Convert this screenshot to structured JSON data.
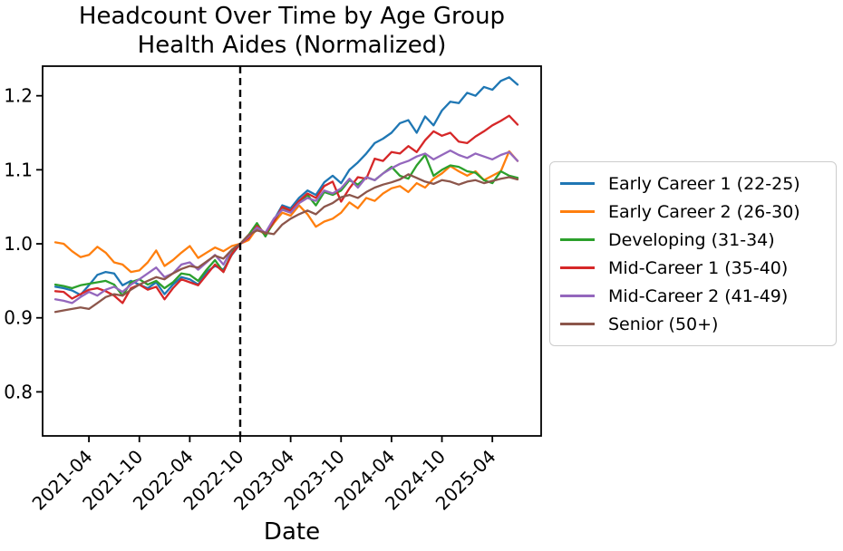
{
  "chart_data": {
    "type": "line",
    "title": "Headcount Over Time by Age Group\nHealth Aides (Normalized)",
    "title_line1": "Headcount Over Time by Age Group",
    "title_line2": "Health Aides (Normalized)",
    "xlabel": "Date",
    "ylabel": "",
    "grid": false,
    "legend_position": "right",
    "ylim": [
      0.7405,
      1.24
    ],
    "y_ticks": [
      0.8,
      0.9,
      1.0,
      1.1,
      1.2
    ],
    "x_months": [
      "2020-12",
      "2021-01",
      "2021-02",
      "2021-03",
      "2021-04",
      "2021-05",
      "2021-06",
      "2021-07",
      "2021-08",
      "2021-09",
      "2021-10",
      "2021-11",
      "2021-12",
      "2022-01",
      "2022-02",
      "2022-03",
      "2022-04",
      "2022-05",
      "2022-06",
      "2022-07",
      "2022-08",
      "2022-09",
      "2022-10",
      "2022-11",
      "2022-12",
      "2023-01",
      "2023-02",
      "2023-03",
      "2023-04",
      "2023-05",
      "2023-06",
      "2023-07",
      "2023-08",
      "2023-09",
      "2023-10",
      "2023-11",
      "2023-12",
      "2024-01",
      "2024-02",
      "2024-03",
      "2024-04",
      "2024-05",
      "2024-06",
      "2024-07",
      "2024-08",
      "2024-09",
      "2024-10",
      "2024-11",
      "2024-12",
      "2025-01",
      "2025-02",
      "2025-03",
      "2025-04",
      "2025-05",
      "2025-06",
      "2025-07"
    ],
    "x_tick_labels": [
      "2021-04",
      "2021-10",
      "2022-04",
      "2022-10",
      "2023-04",
      "2023-10",
      "2024-04",
      "2024-10",
      "2025-04"
    ],
    "vline": {
      "month": "2022-10",
      "style": "dashed",
      "color": "#000000"
    },
    "normalization_note": "all series equal 1.0 at 2022-10",
    "series": [
      {
        "name": "Early Career 1 (22-25)",
        "color": "#1f77b4",
        "values": [
          0.942,
          0.94,
          0.937,
          0.931,
          0.944,
          0.958,
          0.962,
          0.96,
          0.944,
          0.95,
          0.945,
          0.94,
          0.948,
          0.932,
          0.945,
          0.955,
          0.952,
          0.945,
          0.962,
          0.97,
          0.965,
          0.985,
          1.0,
          1.01,
          1.026,
          1.012,
          1.032,
          1.052,
          1.048,
          1.062,
          1.072,
          1.066,
          1.083,
          1.092,
          1.082,
          1.1,
          1.11,
          1.122,
          1.136,
          1.142,
          1.15,
          1.163,
          1.167,
          1.15,
          1.172,
          1.16,
          1.18,
          1.192,
          1.19,
          1.204,
          1.2,
          1.212,
          1.208,
          1.22,
          1.225,
          1.215
        ]
      },
      {
        "name": "Early Career 2 (26-30)",
        "color": "#ff7f0e",
        "values": [
          1.002,
          1.0,
          0.99,
          0.982,
          0.985,
          0.996,
          0.988,
          0.975,
          0.972,
          0.962,
          0.964,
          0.975,
          0.991,
          0.97,
          0.978,
          0.988,
          0.997,
          0.981,
          0.988,
          0.995,
          0.99,
          0.997,
          1.0,
          1.005,
          1.021,
          1.012,
          1.028,
          1.042,
          1.038,
          1.052,
          1.04,
          1.023,
          1.03,
          1.034,
          1.042,
          1.056,
          1.048,
          1.062,
          1.058,
          1.068,
          1.075,
          1.078,
          1.07,
          1.082,
          1.076,
          1.088,
          1.095,
          1.105,
          1.098,
          1.092,
          1.098,
          1.086,
          1.092,
          1.098,
          1.125,
          1.112
        ]
      },
      {
        "name": "Developing (31-34)",
        "color": "#2ca02c",
        "values": [
          0.945,
          0.943,
          0.94,
          0.944,
          0.946,
          0.948,
          0.95,
          0.945,
          0.93,
          0.948,
          0.952,
          0.945,
          0.95,
          0.94,
          0.948,
          0.96,
          0.958,
          0.95,
          0.965,
          0.978,
          0.962,
          0.988,
          1.0,
          1.012,
          1.028,
          1.01,
          1.03,
          1.048,
          1.044,
          1.056,
          1.066,
          1.052,
          1.07,
          1.066,
          1.072,
          1.086,
          1.08,
          1.09,
          1.086,
          1.095,
          1.104,
          1.092,
          1.088,
          1.106,
          1.12,
          1.092,
          1.1,
          1.106,
          1.104,
          1.098,
          1.096,
          1.086,
          1.082,
          1.098,
          1.092,
          1.089
        ]
      },
      {
        "name": "Mid-Career 1 (35-40)",
        "color": "#d62728",
        "values": [
          0.936,
          0.935,
          0.926,
          0.932,
          0.938,
          0.94,
          0.936,
          0.93,
          0.92,
          0.94,
          0.945,
          0.938,
          0.942,
          0.925,
          0.94,
          0.952,
          0.948,
          0.944,
          0.958,
          0.972,
          0.962,
          0.986,
          1.0,
          1.008,
          1.024,
          1.014,
          1.03,
          1.05,
          1.045,
          1.058,
          1.068,
          1.062,
          1.078,
          1.084,
          1.057,
          1.075,
          1.09,
          1.088,
          1.115,
          1.112,
          1.124,
          1.122,
          1.132,
          1.124,
          1.14,
          1.152,
          1.146,
          1.15,
          1.138,
          1.136,
          1.145,
          1.152,
          1.16,
          1.166,
          1.173,
          1.161
        ]
      },
      {
        "name": "Mid-Career 2 (41-49)",
        "color": "#9467bd",
        "values": [
          0.925,
          0.923,
          0.92,
          0.928,
          0.935,
          0.93,
          0.938,
          0.942,
          0.935,
          0.945,
          0.952,
          0.96,
          0.968,
          0.955,
          0.96,
          0.972,
          0.975,
          0.965,
          0.975,
          0.985,
          0.972,
          0.992,
          1.0,
          1.01,
          1.022,
          1.015,
          1.034,
          1.046,
          1.042,
          1.055,
          1.062,
          1.058,
          1.072,
          1.068,
          1.075,
          1.088,
          1.076,
          1.09,
          1.086,
          1.095,
          1.102,
          1.108,
          1.112,
          1.118,
          1.122,
          1.114,
          1.12,
          1.126,
          1.12,
          1.116,
          1.122,
          1.118,
          1.114,
          1.12,
          1.124,
          1.112
        ]
      },
      {
        "name": "Senior (50+)",
        "color": "#8c564b",
        "values": [
          0.908,
          0.91,
          0.912,
          0.914,
          0.912,
          0.92,
          0.928,
          0.932,
          0.93,
          0.938,
          0.945,
          0.95,
          0.955,
          0.952,
          0.96,
          0.966,
          0.97,
          0.968,
          0.976,
          0.984,
          0.98,
          0.992,
          1.0,
          1.012,
          1.018,
          1.015,
          1.013,
          1.026,
          1.034,
          1.04,
          1.045,
          1.04,
          1.05,
          1.055,
          1.063,
          1.066,
          1.062,
          1.07,
          1.076,
          1.08,
          1.083,
          1.087,
          1.094,
          1.089,
          1.084,
          1.081,
          1.086,
          1.084,
          1.08,
          1.084,
          1.086,
          1.082,
          1.085,
          1.088,
          1.09,
          1.087
        ]
      }
    ]
  }
}
